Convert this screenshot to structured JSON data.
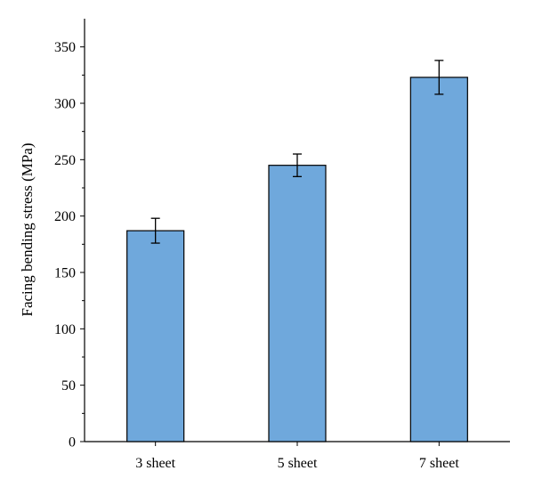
{
  "chart_data": {
    "type": "bar",
    "categories": [
      "3 sheet",
      "5 sheet",
      "7 sheet"
    ],
    "values": [
      187,
      245,
      323
    ],
    "error": [
      11,
      10,
      15
    ],
    "title": "",
    "xlabel": "",
    "ylabel": "Facing bending stress (MPa)",
    "ylim": [
      0,
      375
    ],
    "yticks": [
      0,
      50,
      100,
      150,
      200,
      250,
      300,
      350
    ],
    "bar_color": "#6fa8dc",
    "grid": false
  }
}
